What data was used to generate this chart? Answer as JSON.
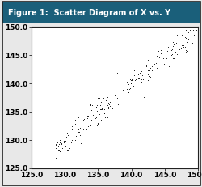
{
  "title": "Figure 1:  Scatter Diagram of X vs. Y",
  "title_bg_color": "#1a5f7a",
  "title_text_color": "#ffffff",
  "xlim": [
    125.0,
    150.0
  ],
  "ylim": [
    125.0,
    150.0
  ],
  "xticks": [
    125.0,
    130.0,
    135.0,
    140.0,
    145.0,
    150.0
  ],
  "yticks": [
    125.0,
    130.0,
    135.0,
    140.0,
    145.0,
    150.0
  ],
  "tick_fontsize": 6.5,
  "dot_color": "#111111",
  "dot_size": 1.8,
  "background_color": "#e8e8e8",
  "plot_bg_color": "#ffffff",
  "border_color": "#222222",
  "seed": 42,
  "n_points": 300,
  "noise": 1.3,
  "x_min": 128.5,
  "x_max": 150.5
}
